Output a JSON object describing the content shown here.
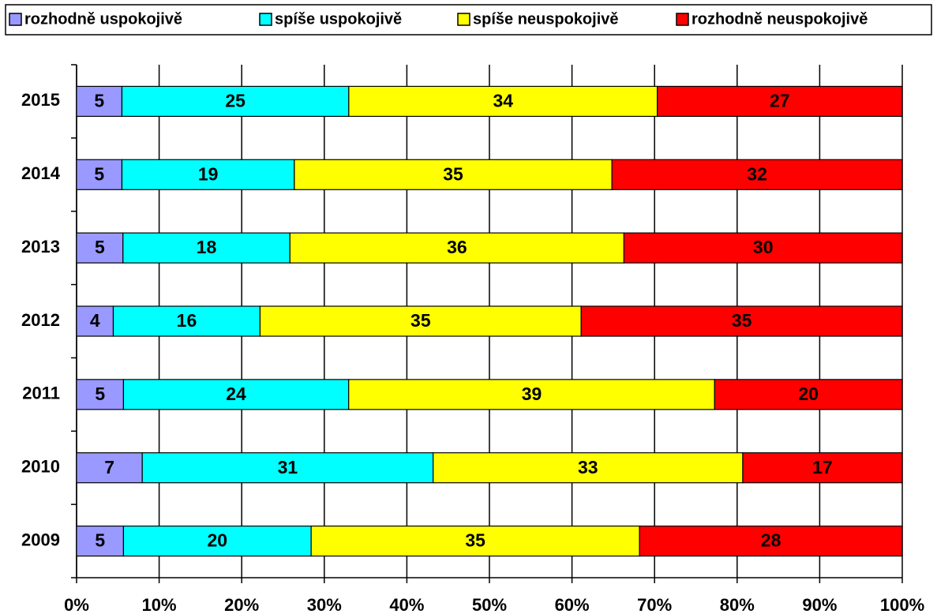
{
  "chart_data": {
    "type": "bar",
    "orientation": "horizontal",
    "stacking": "percent",
    "categories": [
      "2015",
      "2014",
      "2013",
      "2012",
      "2011",
      "2010",
      "2009"
    ],
    "series": [
      {
        "name": "rozhodně uspokojivě",
        "color": "#9999ff",
        "values": [
          5,
          5,
          5,
          4,
          5,
          7,
          5
        ]
      },
      {
        "name": "spíše uspokojivě",
        "color": "#00ffff",
        "values": [
          25,
          19,
          18,
          16,
          24,
          31,
          20
        ]
      },
      {
        "name": "spíše neuspokojivě",
        "color": "#ffff00",
        "values": [
          34,
          35,
          36,
          35,
          39,
          33,
          35
        ]
      },
      {
        "name": "rozhodně neuspokojivě",
        "color": "#ff0000",
        "values": [
          27,
          32,
          30,
          35,
          20,
          17,
          28
        ]
      }
    ],
    "xlim": [
      0,
      100
    ],
    "xticks": [
      {
        "value": 0,
        "label": "0%"
      },
      {
        "value": 10,
        "label": "10%"
      },
      {
        "value": 20,
        "label": "20%"
      },
      {
        "value": 30,
        "label": "30%"
      },
      {
        "value": 40,
        "label": "40%"
      },
      {
        "value": 50,
        "label": "50%"
      },
      {
        "value": 60,
        "label": "60%"
      },
      {
        "value": 70,
        "label": "70%"
      },
      {
        "value": 80,
        "label": "80%"
      },
      {
        "value": 90,
        "label": "90%"
      },
      {
        "value": 100,
        "label": "100%"
      }
    ],
    "grid": true,
    "legend": "top"
  }
}
